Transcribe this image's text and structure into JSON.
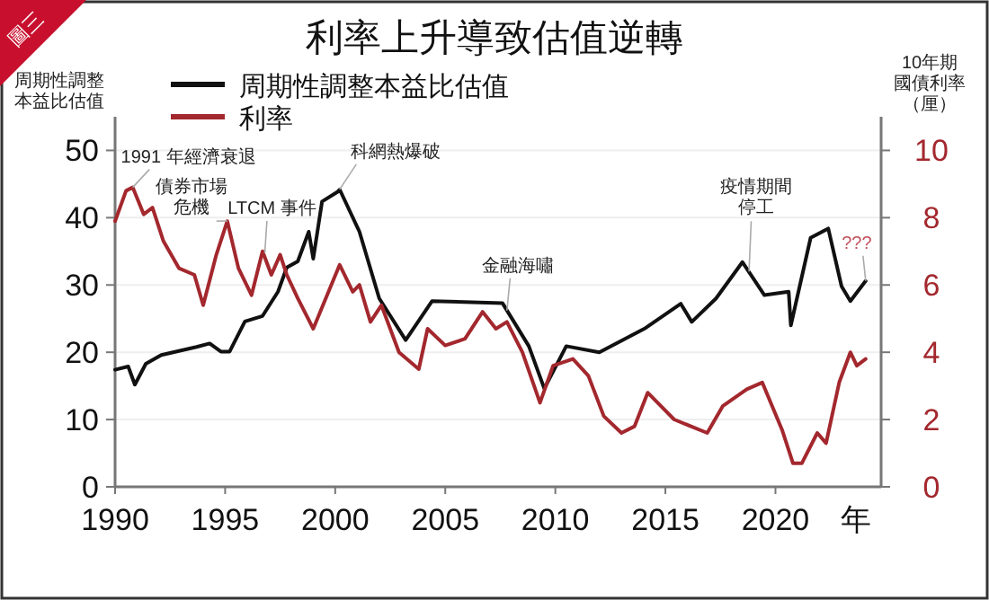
{
  "chart_data": {
    "type": "line",
    "title": "利率上升導致估值逆轉",
    "ylabel": "周期性調整本益比估值",
    "y2label": "10年期國債利率（厘）",
    "xlabel": "年",
    "xlim": [
      1990,
      2024.8
    ],
    "xticks": [
      1990,
      1995,
      2000,
      2005,
      2010,
      2015,
      2020
    ],
    "ylim": [
      0,
      55
    ],
    "yticks": [
      0,
      10,
      20,
      30,
      40,
      50
    ],
    "y2lim": [
      0,
      11
    ],
    "y2ticks": [
      0,
      2,
      4,
      6,
      8,
      10
    ],
    "grid": "y",
    "legend": "top left",
    "line_style": "solid",
    "marker": "none",
    "series": [
      {
        "name": "周期性調整本益比估值",
        "color": "#111111",
        "x": [
          1990,
          1990.6,
          1990.9,
          1991.4,
          1992.1,
          1993.7,
          1994.3,
          1994.8,
          1995.2,
          1995.9,
          1996.7,
          1997.4,
          1997.8,
          1998.3,
          1998.8,
          1999,
          1999.4,
          2000.1,
          2000.2,
          2001.1,
          2002,
          2003.2,
          2004.4,
          2007.6,
          2008.8,
          2009.5,
          2010.5,
          2012,
          2014.1,
          2015.7,
          2016.2,
          2017.3,
          2018.5,
          2019.5,
          2020.6,
          2020.7,
          2021.6,
          2022.4,
          2023,
          2023.4,
          2024.1
        ],
        "values": [
          17.4,
          17.9,
          15.2,
          18.3,
          19.6,
          20.8,
          21.3,
          20.1,
          20.1,
          24.6,
          25.4,
          29,
          32.6,
          33.5,
          37.9,
          33.9,
          42.4,
          43.8,
          44.2,
          37.9,
          28,
          21.8,
          27.6,
          27.3,
          20.9,
          14.6,
          20.9,
          20,
          23.6,
          27.2,
          24.5,
          28,
          33.4,
          28.5,
          29,
          24,
          37,
          38.4,
          29.8,
          27.6,
          30.6
        ]
      },
      {
        "name": "利率",
        "color": "#a3282e",
        "axis": "y2",
        "x": [
          1990,
          1990.5,
          1990.8,
          1991.3,
          1991.7,
          1992.2,
          1992.9,
          1993.6,
          1994,
          1994.6,
          1995.1,
          1995.6,
          1996.2,
          1996.7,
          1997.1,
          1997.5,
          1997.8,
          1998.3,
          1999,
          1999.7,
          2000.2,
          2000.8,
          2001.1,
          2001.6,
          2002.1,
          2002.9,
          2003.8,
          2004.2,
          2005,
          2005.9,
          2006.7,
          2007.3,
          2007.8,
          2008.5,
          2009.3,
          2009.9,
          2010.8,
          2011.5,
          2012.2,
          2013,
          2013.6,
          2014.2,
          2015.4,
          2016.9,
          2017.6,
          2018.7,
          2019.4,
          2020.3,
          2020.8,
          2021.2,
          2021.9,
          2022.3,
          2022.9,
          2023.4,
          2023.7,
          2024.1
        ],
        "values": [
          7.9,
          8.8,
          8.9,
          8.1,
          8.3,
          7.3,
          6.5,
          6.3,
          5.4,
          6.9,
          7.9,
          6.5,
          5.7,
          7,
          6.3,
          6.9,
          6.3,
          5.6,
          4.7,
          5.8,
          6.6,
          5.8,
          6,
          4.9,
          5.4,
          4,
          3.5,
          4.7,
          4.2,
          4.4,
          5.2,
          4.7,
          4.9,
          4,
          2.5,
          3.6,
          3.8,
          3.3,
          2.1,
          1.6,
          1.8,
          2.8,
          2,
          1.6,
          2.4,
          2.9,
          3.1,
          1.7,
          0.7,
          0.7,
          1.6,
          1.3,
          3.1,
          4,
          3.6,
          3.8
        ]
      }
    ],
    "annotations": [
      "圖三",
      {
        "text": "1991 年經濟衰退",
        "x": 1990.8,
        "y": 44.5
      },
      {
        "text": "債券市場危機",
        "x": 1995.1,
        "y": 39.5
      },
      {
        "text": "LTCM 事件",
        "x": 1996.8,
        "y": 34.7
      },
      {
        "text": "科網熱爆破",
        "x": 2000.2,
        "y": 44.2
      },
      {
        "text": "金融海嘯",
        "x": 2007.8,
        "y": 26.2
      },
      {
        "text": "疫情期間停工",
        "x": 2018.8,
        "y": 32
      },
      {
        "text": "???",
        "x": 2024.1,
        "y": 30.6
      }
    ]
  }
}
